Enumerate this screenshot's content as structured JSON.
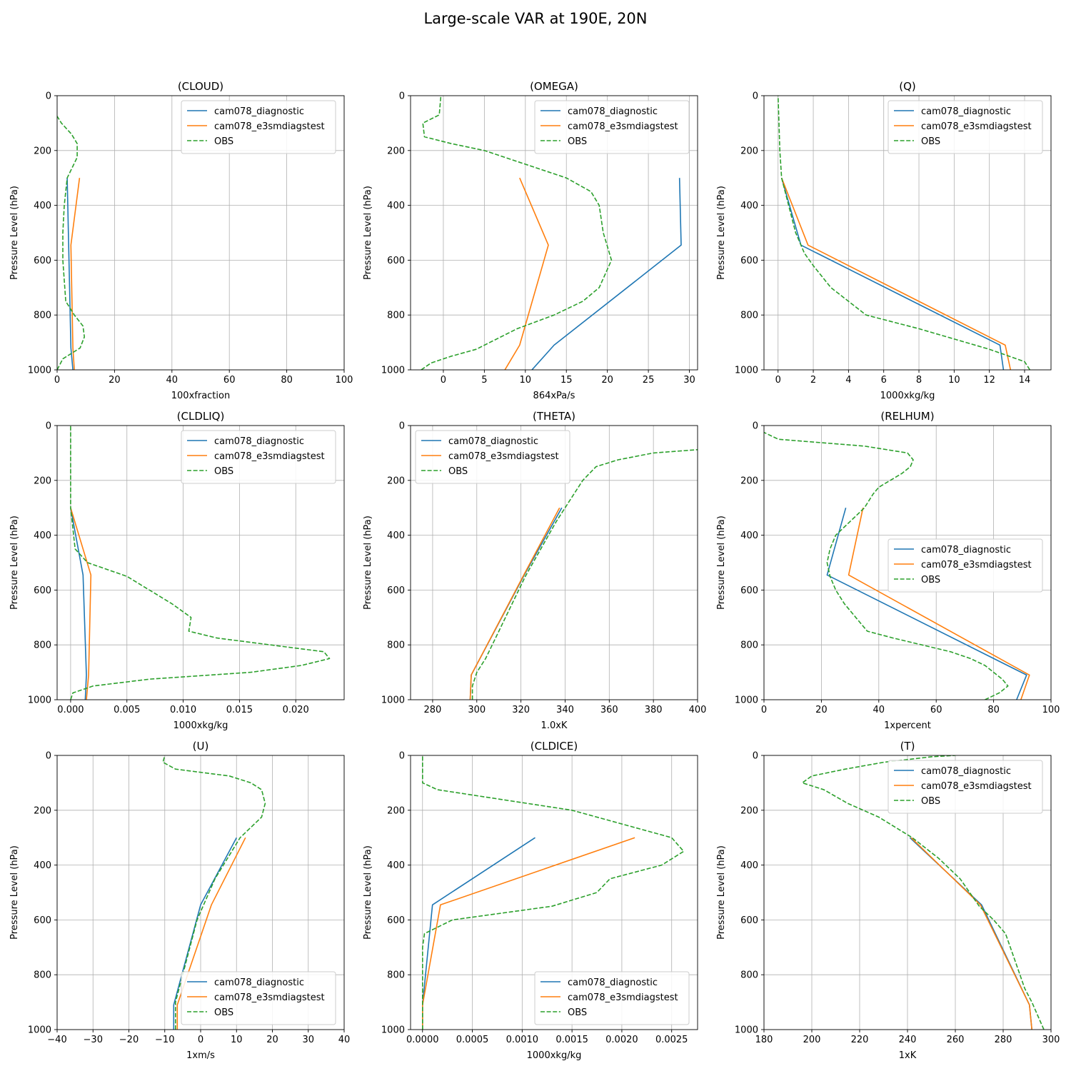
{
  "title": "Large-scale VAR at 190E, 20N",
  "colors": {
    "diag": "#1f77b4",
    "test": "#ff7f0e",
    "obs": "#2ca02c",
    "grid": "#b0b0b0"
  },
  "legend_labels": [
    "cam078_diagnostic",
    "cam078_e3smdiagstest",
    "OBS"
  ],
  "chart_data": [
    {
      "type": "line",
      "title": "(CLOUD)",
      "xlabel": "100xfraction",
      "ylabel": "Pressure Level (hPa)",
      "xlim": [
        0,
        100
      ],
      "ylim": [
        1000,
        0
      ],
      "grid": true,
      "legend_position": "upper right",
      "xticks": [
        0,
        20,
        40,
        60,
        80,
        100
      ],
      "xtick_labels": [
        "0",
        "20",
        "40",
        "60",
        "80",
        "100"
      ],
      "yticks": [
        0,
        200,
        400,
        600,
        800,
        1000
      ],
      "series": [
        {
          "name": "cam078_diagnostic",
          "style": "solid",
          "x": [
            5.5,
            4.8,
            3.5
          ],
          "y": [
            1000,
            920,
            300
          ]
        },
        {
          "name": "cam078_e3smdiagstest",
          "style": "solid",
          "x": [
            6,
            5.5,
            4.8,
            7.8
          ],
          "y": [
            1000,
            920,
            545,
            300
          ]
        },
        {
          "name": "OBS",
          "style": "dashed",
          "x": [
            0,
            2,
            8,
            9.5,
            9,
            6,
            3,
            2,
            2,
            2.5,
            3.5,
            7,
            7,
            5,
            1.5,
            0
          ],
          "y": [
            1000,
            960,
            920,
            880,
            840,
            800,
            750,
            600,
            500,
            400,
            300,
            225,
            175,
            140,
            100,
            75
          ]
        }
      ]
    },
    {
      "type": "line",
      "title": "(OMEGA)",
      "xlabel": "864xPa/s",
      "ylabel": "Pressure Level (hPa)",
      "xlim": [
        -4,
        31
      ],
      "ylim": [
        1000,
        0
      ],
      "grid": true,
      "legend_position": "upper right",
      "xticks": [
        0,
        5,
        10,
        15,
        20,
        25,
        30
      ],
      "xtick_labels": [
        "0",
        "5",
        "10",
        "15",
        "20",
        "25",
        "30"
      ],
      "yticks": [
        0,
        200,
        400,
        600,
        800,
        1000
      ],
      "series": [
        {
          "name": "cam078_diagnostic",
          "style": "solid",
          "x": [
            10.8,
            13.5,
            29,
            28.8
          ],
          "y": [
            1000,
            910,
            545,
            300
          ]
        },
        {
          "name": "cam078_e3smdiagstest",
          "style": "solid",
          "x": [
            7.5,
            9.3,
            12.8,
            9.3
          ],
          "y": [
            1000,
            910,
            545,
            300
          ]
        },
        {
          "name": "OBS",
          "style": "dashed",
          "x": [
            -2.7,
            -1.5,
            1,
            4,
            9,
            13.5,
            17,
            19,
            20.5,
            20,
            19.5,
            19,
            18,
            15,
            10,
            5,
            1,
            -2.3,
            -2.5,
            -0.5,
            -0.3
          ],
          "y": [
            1000,
            975,
            950,
            925,
            850,
            800,
            750,
            700,
            600,
            550,
            500,
            400,
            350,
            300,
            250,
            200,
            175,
            150,
            100,
            70,
            0
          ]
        }
      ]
    },
    {
      "type": "line",
      "title": "(Q)",
      "xlabel": "1000xkg/kg",
      "ylabel": "Pressure Level (hPa)",
      "xlim": [
        -0.8,
        15.5
      ],
      "ylim": [
        1000,
        0
      ],
      "grid": true,
      "legend_position": "upper right",
      "xticks": [
        0,
        2,
        4,
        6,
        8,
        10,
        12,
        14
      ],
      "xtick_labels": [
        "0",
        "2",
        "4",
        "6",
        "8",
        "10",
        "12",
        "14"
      ],
      "yticks": [
        0,
        200,
        400,
        600,
        800,
        1000
      ],
      "series": [
        {
          "name": "cam078_diagnostic",
          "style": "solid",
          "x": [
            12.8,
            12.6,
            1.3,
            0.2
          ],
          "y": [
            1000,
            910,
            545,
            300
          ]
        },
        {
          "name": "cam078_e3smdiagstest",
          "style": "solid",
          "x": [
            13.2,
            12.9,
            1.7,
            0.2
          ],
          "y": [
            1000,
            910,
            545,
            300
          ]
        },
        {
          "name": "OBS",
          "style": "dashed",
          "x": [
            14.3,
            14,
            12,
            8,
            5,
            4,
            3,
            2,
            1.5,
            1,
            0.6,
            0.2,
            0.1,
            0.05,
            0
          ],
          "y": [
            1000,
            970,
            925,
            850,
            800,
            750,
            700,
            620,
            575,
            500,
            400,
            300,
            200,
            100,
            0
          ]
        }
      ]
    },
    {
      "type": "line",
      "title": "(CLDLIQ)",
      "xlabel": "1000xkg/kg",
      "ylabel": "Pressure Level (hPa)",
      "xlim": [
        -0.0012,
        0.0243
      ],
      "ylim": [
        1000,
        0
      ],
      "grid": true,
      "legend_position": "upper right",
      "xticks": [
        0,
        0.005,
        0.01,
        0.015,
        0.02
      ],
      "xtick_labels": [
        "0.000",
        "0.005",
        "0.010",
        "0.015",
        "0.020"
      ],
      "yticks": [
        0,
        200,
        400,
        600,
        800,
        1000
      ],
      "series": [
        {
          "name": "cam078_diagnostic",
          "style": "solid",
          "x": [
            0.0013,
            0.0014,
            0.0011,
            0
          ],
          "y": [
            1000,
            910,
            545,
            300
          ]
        },
        {
          "name": "cam078_e3smdiagstest",
          "style": "solid",
          "x": [
            0.0014,
            0.0016,
            0.0018,
            0
          ],
          "y": [
            1000,
            910,
            545,
            300
          ]
        },
        {
          "name": "OBS",
          "style": "dashed",
          "x": [
            0,
            0.0002,
            0.002,
            0.007,
            0.016,
            0.0205,
            0.023,
            0.0225,
            0.013,
            0.0105,
            0.0107,
            0.009,
            0.005,
            0.0015,
            0.0004,
            0,
            0
          ],
          "y": [
            1000,
            975,
            950,
            925,
            900,
            875,
            850,
            825,
            775,
            750,
            700,
            650,
            550,
            500,
            450,
            300,
            0
          ]
        }
      ]
    },
    {
      "type": "line",
      "title": "(THETA)",
      "xlabel": "1.0xK",
      "ylabel": "Pressure Level (hPa)",
      "xlim": [
        270,
        400
      ],
      "ylim": [
        1000,
        0
      ],
      "grid": true,
      "legend_position": "upper left",
      "xticks": [
        280,
        300,
        320,
        340,
        360,
        380,
        400
      ],
      "xtick_labels": [
        "280",
        "300",
        "320",
        "340",
        "360",
        "380",
        "400"
      ],
      "yticks": [
        0,
        200,
        400,
        600,
        800,
        1000
      ],
      "series": [
        {
          "name": "cam078_diagnostic",
          "style": "solid",
          "x": [
            297,
            297.5,
            321.5,
            338.5
          ],
          "y": [
            1000,
            910,
            545,
            300
          ]
        },
        {
          "name": "cam078_e3smdiagstest",
          "style": "solid",
          "x": [
            297,
            297.5,
            321.3,
            337.5
          ],
          "y": [
            1000,
            910,
            545,
            300
          ]
        },
        {
          "name": "OBS",
          "style": "dashed",
          "x": [
            298,
            298,
            300,
            304,
            310,
            316,
            322,
            329,
            336,
            342,
            348,
            354,
            364,
            380,
            400
          ],
          "y": [
            1000,
            950,
            900,
            850,
            750,
            650,
            550,
            450,
            350,
            275,
            200,
            150,
            125,
            100,
            88
          ]
        }
      ]
    },
    {
      "type": "line",
      "title": "(RELHUM)",
      "xlabel": "1xpercent",
      "ylabel": "Pressure Level (hPa)",
      "xlim": [
        0,
        100
      ],
      "ylim": [
        1000,
        0
      ],
      "grid": true,
      "legend_position": "center right",
      "xticks": [
        0,
        20,
        40,
        60,
        80,
        100
      ],
      "xtick_labels": [
        "0",
        "20",
        "40",
        "60",
        "80",
        "100"
      ],
      "yticks": [
        0,
        200,
        400,
        600,
        800,
        1000
      ],
      "series": [
        {
          "name": "cam078_diagnostic",
          "style": "solid",
          "x": [
            88,
            91.5,
            22,
            28.5
          ],
          "y": [
            1000,
            910,
            545,
            300
          ]
        },
        {
          "name": "cam078_e3smdiagstest",
          "style": "solid",
          "x": [
            89.5,
            92.5,
            29.5,
            34.5
          ],
          "y": [
            1000,
            910,
            545,
            300
          ]
        },
        {
          "name": "OBS",
          "style": "dashed",
          "x": [
            77,
            82,
            85,
            83,
            80,
            77,
            72,
            65,
            55,
            45,
            36,
            32,
            28,
            25,
            23,
            22,
            23,
            25,
            30,
            35,
            38,
            40,
            48,
            51,
            52,
            50,
            35,
            5,
            0
          ],
          "y": [
            1000,
            975,
            950,
            925,
            900,
            875,
            850,
            825,
            800,
            775,
            750,
            700,
            650,
            600,
            550,
            500,
            450,
            400,
            350,
            300,
            250,
            225,
            175,
            150,
            125,
            100,
            75,
            50,
            25
          ]
        }
      ]
    },
    {
      "type": "line",
      "title": "(U)",
      "xlabel": "1xm/s",
      "ylabel": "Pressure Level (hPa)",
      "xlim": [
        -40,
        40
      ],
      "ylim": [
        1000,
        0
      ],
      "grid": true,
      "legend_position": "lower right",
      "xticks": [
        -40,
        -30,
        -20,
        -10,
        0,
        10,
        20,
        30,
        40
      ],
      "xtick_labels": [
        "−40",
        "−30",
        "−20",
        "−10",
        "0",
        "10",
        "20",
        "30",
        "40"
      ],
      "yticks": [
        0,
        200,
        400,
        600,
        800,
        1000
      ],
      "series": [
        {
          "name": "cam078_diagnostic",
          "style": "solid",
          "x": [
            -7.5,
            -7.5,
            0,
            10
          ],
          "y": [
            1000,
            910,
            545,
            300
          ]
        },
        {
          "name": "cam078_e3smdiagstest",
          "style": "solid",
          "x": [
            -6.5,
            -6.5,
            3,
            12.5
          ],
          "y": [
            1000,
            910,
            545,
            300
          ]
        },
        {
          "name": "OBS",
          "style": "dashed",
          "x": [
            -7,
            -7,
            -5,
            -1,
            4,
            11,
            17,
            18,
            17,
            14,
            8,
            -7,
            -10.5,
            -10
          ],
          "y": [
            1000,
            900,
            800,
            600,
            450,
            300,
            225,
            175,
            125,
            100,
            75,
            50,
            25,
            0
          ]
        }
      ]
    },
    {
      "type": "line",
      "title": "(CLDICE)",
      "xlabel": "1000xkg/kg",
      "ylabel": "Pressure Level (hPa)",
      "xlim": [
        -0.00012,
        0.00276
      ],
      "ylim": [
        1000,
        0
      ],
      "grid": true,
      "legend_position": "lower right",
      "xticks": [
        0,
        0.0005,
        0.001,
        0.0015,
        0.002,
        0.0025
      ],
      "xtick_labels": [
        "0.0000",
        "0.0005",
        "0.0010",
        "0.0015",
        "0.0020",
        "0.0025"
      ],
      "yticks": [
        0,
        200,
        400,
        600,
        800,
        1000
      ],
      "series": [
        {
          "name": "cam078_diagnostic",
          "style": "solid",
          "x": [
            0,
            0,
            0.0001,
            0.00113
          ],
          "y": [
            1000,
            910,
            545,
            300
          ]
        },
        {
          "name": "cam078_e3smdiagstest",
          "style": "solid",
          "x": [
            0,
            0,
            0.00018,
            0.00213
          ],
          "y": [
            1000,
            910,
            545,
            300
          ]
        },
        {
          "name": "OBS",
          "style": "dashed",
          "x": [
            0,
            0,
            2e-05,
            0.0003,
            0.0013,
            0.00175,
            0.00188,
            0.0024,
            0.00262,
            0.0025,
            0.0015,
            0.00015,
            0,
            0
          ],
          "y": [
            1000,
            700,
            650,
            600,
            550,
            500,
            450,
            400,
            350,
            300,
            200,
            125,
            100,
            0
          ]
        }
      ]
    },
    {
      "type": "line",
      "title": "(T)",
      "xlabel": "1xK",
      "ylabel": "Pressure Level (hPa)",
      "xlim": [
        180,
        300
      ],
      "ylim": [
        1000,
        0
      ],
      "grid": true,
      "legend_position": "upper right",
      "xticks": [
        180,
        200,
        220,
        240,
        260,
        280,
        300
      ],
      "xtick_labels": [
        "180",
        "200",
        "220",
        "240",
        "260",
        "280",
        "300"
      ],
      "yticks": [
        0,
        200,
        400,
        600,
        800,
        1000
      ],
      "series": [
        {
          "name": "cam078_diagnostic",
          "style": "solid",
          "x": [
            292,
            291,
            271,
            241
          ],
          "y": [
            1000,
            910,
            545,
            300
          ]
        },
        {
          "name": "cam078_e3smdiagstest",
          "style": "solid",
          "x": [
            292,
            291,
            270.5,
            241.5
          ],
          "y": [
            1000,
            910,
            545,
            300
          ]
        },
        {
          "name": "OBS",
          "style": "dashed",
          "x": [
            297,
            292,
            289,
            285,
            281,
            276,
            270,
            262,
            253,
            242,
            228,
            215,
            205,
            196,
            200,
            214,
            230,
            240,
            250,
            260
          ],
          "y": [
            1000,
            900,
            850,
            750,
            650,
            600,
            550,
            450,
            375,
            300,
            225,
            175,
            125,
            100,
            75,
            50,
            25,
            15,
            5,
            0
          ]
        }
      ]
    }
  ]
}
